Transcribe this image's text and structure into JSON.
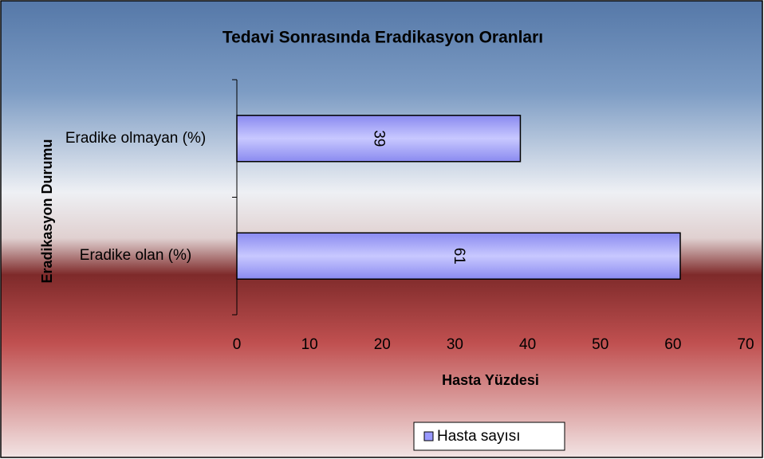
{
  "chart_data": {
    "type": "bar",
    "orientation": "horizontal",
    "title": "Tedavi Sonrasında Eradikasyon Oranları",
    "x_label": "Hasta Yüzdesi",
    "y_label": "Eradikasyon Durumu",
    "categories": [
      "Eradike olan (%)",
      "Eradike olmayan (%)"
    ],
    "series": [
      {
        "name": "Hasta sayısı",
        "color": "#9999ff",
        "values": [
          61,
          39
        ]
      }
    ],
    "xlim": [
      0,
      70
    ],
    "xticks": [
      0,
      10,
      20,
      30,
      40,
      50,
      60,
      70
    ],
    "grid": false,
    "legend": "bottom"
  }
}
